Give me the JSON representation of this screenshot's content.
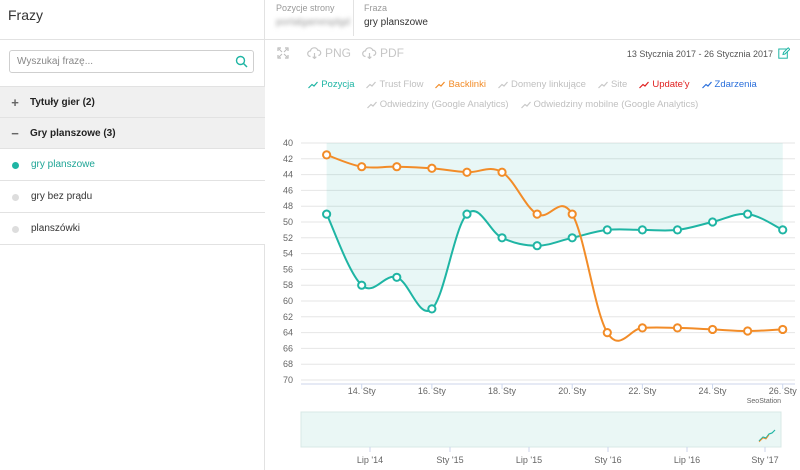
{
  "left_panel": {
    "title": "Frazy",
    "search_placeholder": "Wyszukaj frazę...",
    "groups": [
      {
        "label": "Tytuły gier (2)",
        "expanded": false,
        "sign": "+"
      },
      {
        "label": "Gry planszowe (3)",
        "expanded": true,
        "sign": "−"
      }
    ],
    "items": [
      {
        "label": "gry planszowe",
        "active": true
      },
      {
        "label": "gry bez prądu",
        "active": false
      },
      {
        "label": "planszówki",
        "active": false
      }
    ]
  },
  "header": {
    "positions_label": "Pozycje strony",
    "positions_value": "portalgamesplgd",
    "phrase_label": "Fraza",
    "phrase_value": "gry planszowe"
  },
  "toolbar": {
    "png_label": "PNG",
    "pdf_label": "PDF",
    "date_range": "13 Stycznia 2017 - 26 Stycznia 2017"
  },
  "legend": [
    {
      "label": "Pozycja",
      "color": "#1fb5a4",
      "active": true
    },
    {
      "label": "Trust Flow",
      "color": "#c8c8c8",
      "active": false
    },
    {
      "label": "Backlinki",
      "color": "#f28c28",
      "active": true
    },
    {
      "label": "Domeny linkujące",
      "color": "#c8c8c8",
      "active": false
    },
    {
      "label": "Site",
      "color": "#c8c8c8",
      "active": false
    },
    {
      "label": "Update'y",
      "color": "#e02020",
      "active": true
    },
    {
      "label": "Zdarzenia",
      "color": "#2a6fdb",
      "active": true
    },
    {
      "label": "Odwiedziny (Google Analytics)",
      "color": "#c8c8c8",
      "active": false
    },
    {
      "label": "Odwiedziny mobilne (Google Analytics)",
      "color": "#c8c8c8",
      "active": false
    }
  ],
  "chart_data": {
    "type": "line",
    "y_reversed": true,
    "ylim": [
      40,
      70
    ],
    "y_ticks": [
      40,
      42,
      44,
      46,
      48,
      50,
      52,
      54,
      56,
      58,
      60,
      62,
      64,
      66,
      68,
      70
    ],
    "x_days": [
      13,
      14,
      15,
      16,
      17,
      18,
      19,
      20,
      21,
      22,
      23,
      24,
      25,
      26
    ],
    "x_tick_labels": [
      {
        "day": 14,
        "label": "14. Sty"
      },
      {
        "day": 16,
        "label": "16. Sty"
      },
      {
        "day": 18,
        "label": "18. Sty"
      },
      {
        "day": 20,
        "label": "20. Sty"
      },
      {
        "day": 22,
        "label": "22. Sty"
      },
      {
        "day": 24,
        "label": "24. Sty"
      },
      {
        "day": 26,
        "label": "26. Sty"
      }
    ],
    "series": [
      {
        "name": "Pozycja",
        "color": "#1fb5a4",
        "area": true,
        "values": [
          49,
          58,
          57,
          61,
          49,
          52,
          53,
          52,
          51,
          51,
          51,
          50,
          49,
          51
        ]
      },
      {
        "name": "Backlinki",
        "color": "#f28c28",
        "area": false,
        "values": [
          41.5,
          43,
          43,
          43.2,
          43.7,
          43.7,
          49,
          49,
          64,
          63.4,
          63.4,
          63.6,
          63.8,
          63.6
        ]
      }
    ],
    "credit": "SeoStation",
    "navigator_labels": [
      "Lip '14",
      "Sty '15",
      "Lip '15",
      "Sty '16",
      "Lip '16",
      "Sty '17"
    ]
  }
}
